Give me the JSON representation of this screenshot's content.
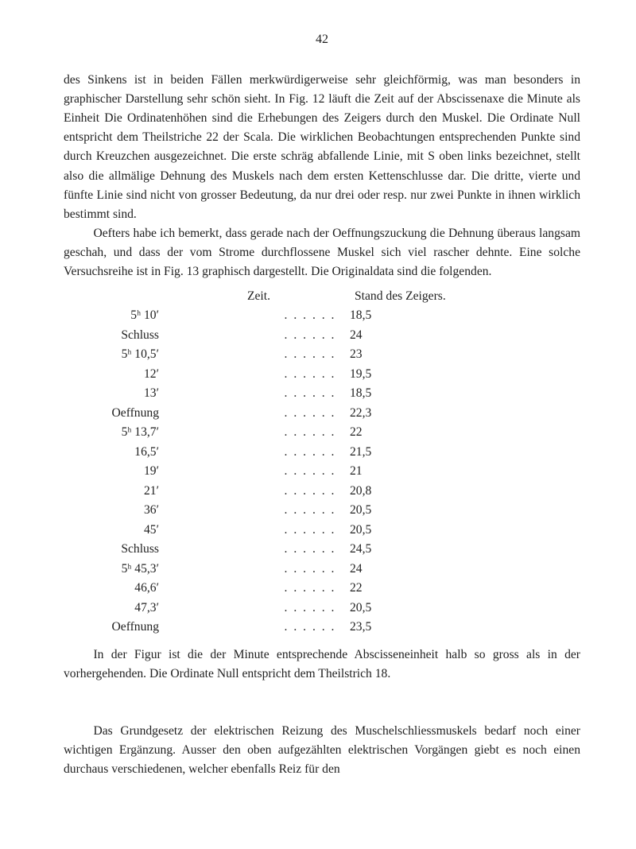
{
  "page_number": "42",
  "p1": "des Sinkens ist in beiden Fällen merkwürdigerweise sehr gleichförmig, was man besonders in graphischer Darstellung sehr schön sieht. In Fig. 12 läuft die Zeit auf der Abscissenaxe die Minute als Einheit   Die Ordinatenhöhen sind die Erhebungen des Zeigers durch den Muskel. Die Ordinate Null entspricht dem Theilstriche 22 der Scala. Die wirklichen Beobachtungen entsprechenden Punkte sind durch Kreuz­chen ausgezeichnet. Die erste schräg abfallende Linie, mit S oben links bezeichnet, stellt also die allmälige Dehnung des Muskels nach dem ersten Kettenschlusse dar. Die dritte, vierte und fünfte Linie sind nicht von grosser Bedeutung, da nur drei oder resp. nur zwei Punkte in ihnen wirklich bestimmt sind.",
  "p2_lead": "Oefters habe ich bemerkt, dass gerade nach der Oeffnungszuckung die Dehnung überaus langsam geschah, und dass der vom Strome durchflossene Muskel sich viel rascher dehnte. Eine solche Versuchsreihe ist in Fig. 13 graphisch dargestellt. Die Originaldata sind die folgenden.",
  "table": {
    "header": {
      "left": "Zeit.",
      "right": "Stand des Zeigers."
    },
    "rows": [
      {
        "label": "5ʰ 10′",
        "value": "18,5"
      },
      {
        "label": "Schluss",
        "value": "24"
      },
      {
        "label": "5ʰ 10,5′",
        "value": "23"
      },
      {
        "label": "12′",
        "value": "19,5"
      },
      {
        "label": "13′",
        "value": "18,5"
      },
      {
        "label": "Oeffnung",
        "value": "22,3"
      },
      {
        "label": "5ʰ 13,7′",
        "value": "22"
      },
      {
        "label": "16,5′",
        "value": "21,5"
      },
      {
        "label": "19′",
        "value": "21"
      },
      {
        "label": "21′",
        "value": "20,8"
      },
      {
        "label": "36′",
        "value": "20,5"
      },
      {
        "label": "45′",
        "value": "20,5"
      },
      {
        "label": "Schluss",
        "value": "24,5"
      },
      {
        "label": "5ʰ 45,3′",
        "value": "24"
      },
      {
        "label": "46,6′",
        "value": "22"
      },
      {
        "label": "47,3′",
        "value": "20,5"
      },
      {
        "label": "Oeffnung",
        "value": "23,5"
      }
    ],
    "dots": ". . . . . ."
  },
  "p3": "In der Figur ist die der Minute entsprechende Abscisseneinheit halb so gross als in der vorhergehenden. Die Ordinate Null entspricht dem Theilstrich 18.",
  "p4": "Das Grundgesetz der elektrischen Reizung des Muschelschliessmuskels bedarf noch einer wichtigen Ergänzung. Ausser den oben aufgezählten elektrischen Vor­gängen giebt es noch einen durchaus verschiedenen, welcher ebenfalls Reiz für den"
}
